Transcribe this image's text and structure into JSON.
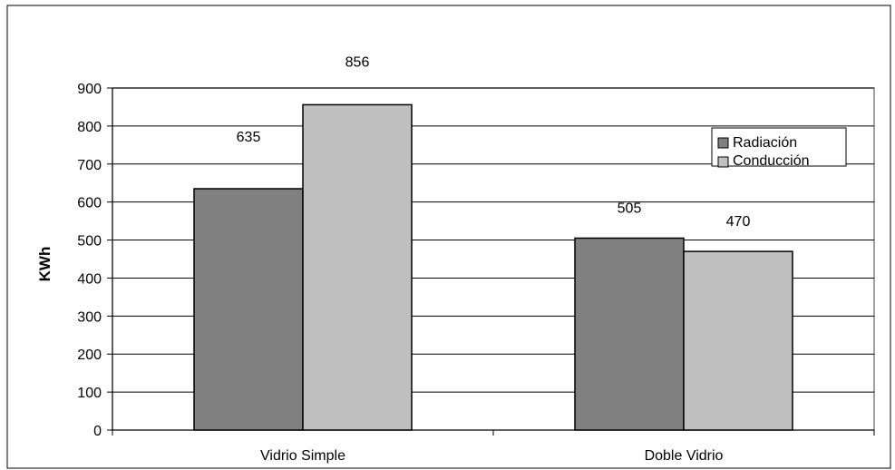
{
  "chart_data": {
    "type": "bar",
    "categories": [
      "Vidrio Simple",
      "Doble Vidrio"
    ],
    "series": [
      {
        "name": "Radiación",
        "values": [
          635,
          856
        ]
      },
      {
        "name": "Conducción",
        "values": [
          505,
          470
        ]
      }
    ],
    "title": "",
    "xlabel": "",
    "ylabel": "KWh",
    "ylim": [
      0,
      900
    ],
    "yticks": [
      0,
      100,
      200,
      300,
      400,
      500,
      600,
      700,
      800,
      900
    ],
    "grid": true,
    "legend": "top-right",
    "colors": {
      "series": [
        "#808080",
        "#c0c0c0"
      ],
      "grid": "#000000",
      "plot_border": "#808080"
    }
  }
}
